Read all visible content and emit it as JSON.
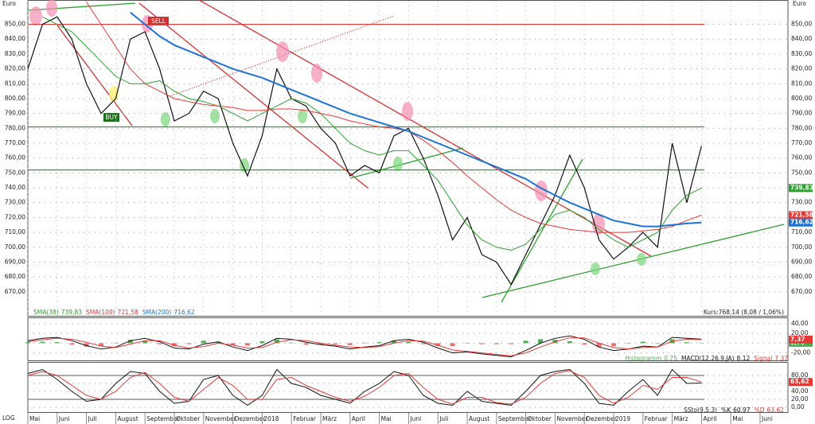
{
  "chart_data": [
    {
      "type": "line",
      "y_unit": "Euro",
      "log_label": "LOG",
      "quote_text": "Kurs:768,14 (8,08 / 1,06%)",
      "signals": [
        "SELL",
        "BUY"
      ],
      "categories": [
        "Mai",
        null,
        "Juni",
        null,
        "Juli",
        null,
        "August",
        null,
        "September",
        null,
        "Oktober",
        null,
        "November",
        null,
        "Dezember",
        null,
        "2018",
        null,
        "Februar",
        null,
        "März",
        null,
        "April",
        null,
        "Mai",
        null,
        "Juni",
        null,
        "Juli",
        null,
        "August",
        null,
        "September",
        null,
        "Oktober",
        null,
        "November",
        null,
        "Dezember",
        null,
        "2019",
        null,
        "Februar",
        null,
        "März",
        null,
        "April",
        null,
        "Mai",
        null,
        "Juni",
        null
      ],
      "ylim": [
        656,
        861
      ],
      "yticks": [
        {
          "value": 670,
          "label": "670,00"
        },
        {
          "value": 680,
          "label": "680,00"
        },
        {
          "value": 690,
          "label": "690,00"
        },
        {
          "value": 700,
          "label": "700,00"
        },
        {
          "value": 710,
          "label": "710,00"
        },
        {
          "value": 720,
          "label": "720,00"
        },
        {
          "value": 730,
          "label": "730,00"
        },
        {
          "value": 740,
          "label": "740,00"
        },
        {
          "value": 750,
          "label": "750,00"
        },
        {
          "value": 760,
          "label": "760,00"
        },
        {
          "value": 770,
          "label": "770,00"
        },
        {
          "value": 780,
          "label": "780,00"
        },
        {
          "value": 790,
          "label": "790,00"
        },
        {
          "value": 800,
          "label": "800,00"
        },
        {
          "value": 810,
          "label": "810,00"
        },
        {
          "value": 820,
          "label": "820,00"
        },
        {
          "value": 830,
          "label": "830,00"
        },
        {
          "value": 840,
          "label": "840,00"
        },
        {
          "value": 850,
          "label": "850,00"
        }
      ],
      "grid": true,
      "levels": [
        {
          "value": 850,
          "color": "#e53935"
        },
        {
          "value": 781,
          "color": "#2e9e2e"
        },
        {
          "value": 752,
          "color": "#2e9e2e"
        }
      ],
      "series": [
        {
          "color": "#111111",
          "width": 1.2,
          "values": [
            820,
            850,
            855,
            840,
            810,
            790,
            800,
            840,
            845,
            820,
            785,
            790,
            805,
            800,
            770,
            748,
            775,
            820,
            800,
            795,
            780,
            770,
            748,
            755,
            750,
            775,
            780,
            760,
            735,
            705,
            720,
            695,
            690,
            675,
            695,
            715,
            735,
            762,
            740,
            705,
            692,
            700,
            710,
            700,
            770,
            730,
            768.14,
            null,
            null,
            null,
            null,
            null
          ]
        },
        {
          "name": "SMA(38)",
          "last_label": "739,83",
          "color": "#2e9e2e",
          "width": 1,
          "values": [
            null,
            855,
            850,
            845,
            835,
            825,
            815,
            810,
            810,
            812,
            805,
            800,
            798,
            795,
            790,
            785,
            790,
            795,
            800,
            797,
            790,
            780,
            770,
            765,
            762,
            765,
            765,
            755,
            745,
            730,
            715,
            705,
            700,
            698,
            702,
            712,
            722,
            725,
            720,
            712,
            705,
            700,
            705,
            710,
            725,
            735,
            739.83,
            null,
            null,
            null,
            null,
            null
          ]
        },
        {
          "name": "SMA(100)",
          "last_label": "721,58",
          "color": "#e53935",
          "width": 1,
          "values": [
            null,
            null,
            null,
            null,
            865,
            850,
            835,
            820,
            810,
            805,
            800,
            798,
            796,
            795,
            794,
            792,
            792,
            793,
            793,
            792,
            790,
            788,
            785,
            783,
            781,
            780,
            778,
            772,
            765,
            757,
            748,
            740,
            732,
            725,
            720,
            716,
            714,
            712,
            711,
            710,
            710,
            710,
            711,
            712,
            714,
            718,
            721.58,
            null,
            null,
            null,
            null,
            null
          ]
        },
        {
          "name": "SMA(200)",
          "last_label": "716,62",
          "color": "#1e73d2",
          "width": 2,
          "values": [
            null,
            null,
            null,
            null,
            null,
            null,
            null,
            858,
            850,
            842,
            836,
            832,
            828,
            824,
            820,
            817,
            814,
            810,
            806,
            802,
            798,
            794,
            790,
            787,
            784,
            781,
            778,
            774,
            770,
            766,
            762,
            758,
            754,
            750,
            746,
            740,
            735,
            730,
            726,
            722,
            718,
            716,
            714,
            714,
            715,
            716,
            716.62,
            null,
            null,
            null,
            null,
            null
          ]
        }
      ]
    },
    {
      "type": "line",
      "ylim": [
        -32,
        48
      ],
      "yticks": [
        {
          "value": -20,
          "label": "-20,00"
        },
        {
          "value": 0,
          "label": "0,00"
        },
        {
          "value": 20,
          "label": "20,00"
        },
        {
          "value": 40,
          "label": "40,00"
        }
      ],
      "grid": true,
      "series": [
        {
          "name": "Histogramm",
          "type": "bar",
          "last_label": "0,75",
          "color": "#4caf50",
          "negative_color": "#e57373",
          "values": [
            2,
            3,
            2,
            -3,
            -7,
            -6,
            1,
            7,
            5,
            -2,
            -6,
            -2,
            5,
            3,
            -4,
            -5,
            4,
            8,
            1,
            -3,
            -3,
            -2,
            -4,
            1,
            2,
            5,
            3,
            -2,
            -6,
            -6,
            -1,
            -2,
            -2,
            -2,
            5,
            8,
            7,
            4,
            -3,
            -8,
            -6,
            0,
            3,
            0,
            8,
            2,
            0.75,
            null,
            null,
            null,
            null,
            null
          ]
        },
        {
          "name": "MACD(12,26,9,JA)",
          "legend_value": "8,12",
          "color": "#111111",
          "width": 1,
          "values": [
            5,
            10,
            12,
            5,
            -5,
            -12,
            -8,
            5,
            10,
            3,
            -10,
            -12,
            -2,
            3,
            -8,
            -15,
            -5,
            10,
            8,
            2,
            -3,
            -6,
            -12,
            -8,
            -5,
            5,
            8,
            2,
            -10,
            -20,
            -18,
            -22,
            -25,
            -28,
            -15,
            0,
            10,
            15,
            8,
            -8,
            -15,
            -12,
            -6,
            -8,
            12,
            10,
            8.12,
            null,
            null,
            null,
            null,
            null
          ]
        },
        {
          "name": "Signal",
          "last_label": "7,37",
          "color": "#e53935",
          "width": 1,
          "values": [
            3,
            7,
            10,
            8,
            2,
            -6,
            -9,
            -2,
            5,
            5,
            -4,
            -10,
            -7,
            0,
            -4,
            -10,
            -9,
            2,
            7,
            5,
            0,
            -4,
            -8,
            -9,
            -7,
            0,
            5,
            4,
            -4,
            -14,
            -17,
            -20,
            -23,
            -26,
            -20,
            -8,
            3,
            11,
            11,
            0,
            -9,
            -12,
            -9,
            -8,
            4,
            8,
            7.37,
            null,
            null,
            null,
            null,
            null
          ]
        }
      ]
    },
    {
      "type": "line",
      "title": "SSto(9,5,3)",
      "ylim": [
        -8,
        108
      ],
      "yticks": [
        {
          "value": 0,
          "label": "0,00"
        },
        {
          "value": 20,
          "label": "20,00"
        },
        {
          "value": 40,
          "label": "40,00"
        },
        {
          "value": 60,
          "label": "60,00"
        },
        {
          "value": 80,
          "label": "80,00"
        }
      ],
      "grid": true,
      "levels": [
        {
          "value": 80,
          "color": "#777777"
        },
        {
          "value": 20,
          "color": "#777777"
        }
      ],
      "series": [
        {
          "name": "%K",
          "legend_value": "60,97",
          "color": "#111111",
          "width": 1,
          "values": [
            85,
            95,
            70,
            40,
            15,
            20,
            60,
            90,
            85,
            40,
            10,
            15,
            70,
            80,
            30,
            5,
            30,
            95,
            60,
            50,
            30,
            20,
            10,
            40,
            60,
            90,
            80,
            30,
            10,
            5,
            40,
            15,
            10,
            5,
            40,
            80,
            90,
            95,
            60,
            10,
            5,
            40,
            70,
            30,
            95,
            60,
            60.97,
            null,
            null,
            null,
            null,
            null
          ]
        },
        {
          "name": "%D",
          "last_label": "63,62",
          "color": "#e53935",
          "width": 1,
          "values": [
            80,
            90,
            80,
            55,
            30,
            20,
            40,
            75,
            88,
            60,
            25,
            15,
            45,
            75,
            55,
            20,
            20,
            70,
            75,
            55,
            40,
            25,
            15,
            28,
            50,
            80,
            85,
            50,
            20,
            8,
            25,
            25,
            12,
            8,
            25,
            60,
            85,
            92,
            75,
            30,
            10,
            25,
            55,
            45,
            75,
            75,
            63.62,
            null,
            null,
            null,
            null,
            null
          ]
        }
      ]
    }
  ]
}
